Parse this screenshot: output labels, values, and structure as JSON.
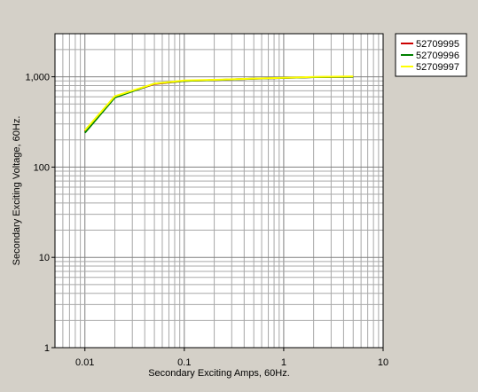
{
  "chart_data": {
    "type": "line",
    "xscale": "log",
    "yscale": "log",
    "xlim": [
      0.005,
      10
    ],
    "ylim": [
      1,
      3000
    ],
    "xlabel": "Secondary Exciting Amps, 60Hz.",
    "ylabel": "Secondary Exciting Voltage, 60Hz.",
    "x_ticks": [
      {
        "value": 0.01,
        "label": "0.01"
      },
      {
        "value": 0.1,
        "label": "0.1"
      },
      {
        "value": 1,
        "label": "1"
      },
      {
        "value": 10,
        "label": "10"
      }
    ],
    "y_ticks": [
      {
        "value": 1,
        "label": "1"
      },
      {
        "value": 10,
        "label": "10"
      },
      {
        "value": 100,
        "label": "100"
      },
      {
        "value": 1000,
        "label": "1,000"
      }
    ],
    "grid": true,
    "legend_position": "top-right",
    "series": [
      {
        "name": "52709995",
        "color": "#cc0000",
        "points": [
          [
            0.01,
            250
          ],
          [
            0.02,
            600
          ],
          [
            0.05,
            830
          ],
          [
            0.1,
            900
          ],
          [
            0.2,
            920
          ],
          [
            0.5,
            950
          ],
          [
            1,
            970
          ],
          [
            2,
            990
          ],
          [
            5,
            1000
          ]
        ]
      },
      {
        "name": "52709996",
        "color": "#008000",
        "points": [
          [
            0.01,
            240
          ],
          [
            0.02,
            590
          ],
          [
            0.05,
            840
          ],
          [
            0.1,
            900
          ],
          [
            0.2,
            920
          ],
          [
            0.5,
            950
          ],
          [
            1,
            970
          ],
          [
            2,
            990
          ],
          [
            5,
            1000
          ]
        ]
      },
      {
        "name": "52709997",
        "color": "#ffff00",
        "points": [
          [
            0.01,
            255
          ],
          [
            0.02,
            610
          ],
          [
            0.05,
            840
          ],
          [
            0.1,
            910
          ],
          [
            0.2,
            925
          ],
          [
            0.5,
            955
          ],
          [
            1,
            975
          ],
          [
            2,
            995
          ],
          [
            5,
            1010
          ]
        ]
      }
    ]
  }
}
